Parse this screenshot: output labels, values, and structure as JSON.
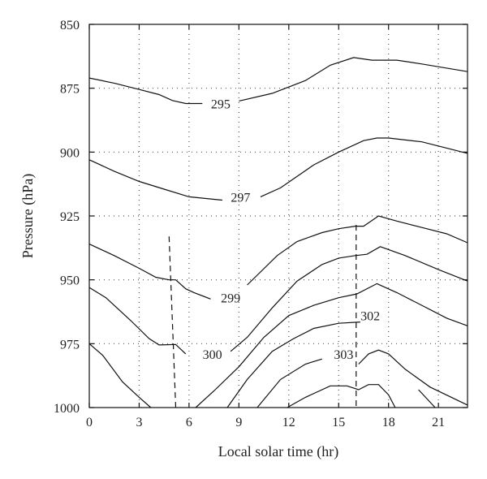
{
  "chart_data": {
    "type": "line",
    "subtype": "contour",
    "xlabel": "Local solar time (hr)",
    "ylabel": "Pressure (hPa)",
    "xlim": [
      0,
      22.75
    ],
    "ylim": [
      1000,
      850
    ],
    "y_inverted": true,
    "x_ticks": [
      0,
      3,
      6,
      9,
      12,
      15,
      18,
      21
    ],
    "y_ticks": [
      850,
      875,
      900,
      925,
      950,
      975,
      1000
    ],
    "grid": "dotted",
    "series": [
      {
        "label": "295",
        "points": [
          [
            0,
            871
          ],
          [
            1.5,
            873
          ],
          [
            3,
            875.5
          ],
          [
            4.2,
            877.5
          ],
          [
            5,
            879.8
          ],
          [
            5.8,
            881
          ],
          [
            6.8,
            881
          ]
        ],
        "points_2": [
          [
            9,
            880
          ],
          [
            11,
            877
          ],
          [
            13,
            872
          ],
          [
            14.5,
            866
          ],
          [
            15.9,
            863
          ],
          [
            17,
            864
          ],
          [
            18.5,
            864
          ],
          [
            20,
            865.5
          ],
          [
            22.75,
            868.5
          ]
        ],
        "label_at": [
          7.9,
          881
        ]
      },
      {
        "label": "297",
        "points": [
          [
            0,
            903
          ],
          [
            1.5,
            907.5
          ],
          [
            3,
            911.5
          ],
          [
            4.5,
            914.5
          ],
          [
            6,
            917.5
          ],
          [
            7.5,
            918.5
          ],
          [
            8,
            918.8
          ]
        ],
        "points_2": [
          [
            10.3,
            917.5
          ],
          [
            11.5,
            914
          ],
          [
            13.5,
            905
          ],
          [
            15,
            900
          ],
          [
            16.5,
            895.5
          ],
          [
            17.3,
            894.5
          ],
          [
            18,
            894.5
          ],
          [
            20,
            896
          ],
          [
            22.75,
            900.5
          ]
        ],
        "label_at": [
          9.1,
          917.5
        ]
      },
      {
        "label": "299",
        "points": [
          [
            0,
            936
          ],
          [
            1.5,
            940.5
          ],
          [
            3,
            945.5
          ],
          [
            4,
            949
          ],
          [
            4.8,
            950
          ],
          [
            5.2,
            950
          ],
          [
            5.8,
            953.5
          ],
          [
            6.3,
            955
          ],
          [
            7.3,
            957.5
          ]
        ],
        "points_2": [
          [
            9.5,
            952
          ],
          [
            11.3,
            940.5
          ],
          [
            12.5,
            935
          ],
          [
            14,
            931.5
          ],
          [
            15,
            930
          ],
          [
            16,
            929
          ],
          [
            16.5,
            929
          ],
          [
            17.4,
            925
          ],
          [
            18.5,
            927
          ],
          [
            20,
            929.5
          ],
          [
            21.5,
            932
          ],
          [
            22.75,
            935.5
          ]
        ],
        "label_at": [
          8.5,
          957
        ]
      },
      {
        "label": "300",
        "points": [
          [
            0,
            953
          ],
          [
            1,
            957
          ],
          [
            2.5,
            966
          ],
          [
            3.6,
            973
          ],
          [
            4.2,
            975.5
          ],
          [
            5.2,
            975.3
          ],
          [
            5.8,
            979
          ]
        ],
        "points_2": [
          [
            8.5,
            978
          ],
          [
            9.5,
            972.5
          ],
          [
            11,
            961
          ],
          [
            12.5,
            950.5
          ],
          [
            14,
            944
          ],
          [
            15,
            941.5
          ],
          [
            16,
            940.5
          ],
          [
            16.7,
            940
          ],
          [
            17.5,
            937
          ],
          [
            19,
            940.5
          ],
          [
            21,
            946
          ],
          [
            22.75,
            950.5
          ]
        ],
        "label_at": [
          7.4,
          979
        ]
      },
      {
        "label": "302",
        "points": [
          [
            0,
            975
          ],
          [
            0.8,
            979.5
          ],
          [
            2,
            990
          ],
          [
            3,
            996
          ],
          [
            3.7,
            1000
          ]
        ],
        "points_2": [
          [
            6.4,
            1000
          ],
          [
            7.5,
            993.5
          ],
          [
            9,
            984
          ],
          [
            10.5,
            972.5
          ],
          [
            12,
            964
          ],
          [
            13.5,
            960
          ],
          [
            15,
            957
          ],
          [
            16.1,
            955.5
          ],
          [
            17.3,
            951.5
          ],
          [
            18.5,
            955
          ],
          [
            20,
            960
          ],
          [
            21.5,
            965
          ],
          [
            22.75,
            968
          ]
        ],
        "label_at": [
          16.9,
          964
        ]
      },
      {
        "label": "303",
        "points": [
          [
            8.3,
            1000
          ],
          [
            9.5,
            989
          ],
          [
            11,
            978
          ],
          [
            12.3,
            973
          ],
          [
            13.5,
            969
          ],
          [
            15,
            967
          ],
          [
            16.3,
            966.5
          ]
        ],
        "points_2": [
          [
            10.1,
            1000
          ],
          [
            11.5,
            989
          ],
          [
            13,
            983
          ],
          [
            14,
            981
          ]
        ],
        "points_3": [
          [
            16.2,
            983
          ],
          [
            16.8,
            979
          ],
          [
            17.4,
            977.5
          ],
          [
            18,
            979
          ],
          [
            19,
            985
          ],
          [
            20.5,
            992
          ],
          [
            22.75,
            999
          ]
        ],
        "label_at": [
          15.3,
          979
        ]
      },
      {
        "label": "",
        "points": [
          [
            11.9,
            1000
          ],
          [
            13,
            996
          ],
          [
            14.5,
            991.5
          ],
          [
            15.5,
            991.5
          ],
          [
            16.2,
            993
          ],
          [
            16.8,
            991
          ],
          [
            17.4,
            991
          ],
          [
            18,
            995
          ],
          [
            18.4,
            1000
          ]
        ],
        "points_2": [
          [
            19.8,
            993
          ],
          [
            20.8,
            1000
          ]
        ]
      }
    ],
    "dashed_lines": [
      {
        "points": [
          [
            4.8,
            933
          ],
          [
            5.2,
            1000
          ]
        ]
      },
      {
        "points": [
          [
            16.05,
            928.5
          ],
          [
            16.05,
            1000
          ]
        ]
      }
    ]
  }
}
